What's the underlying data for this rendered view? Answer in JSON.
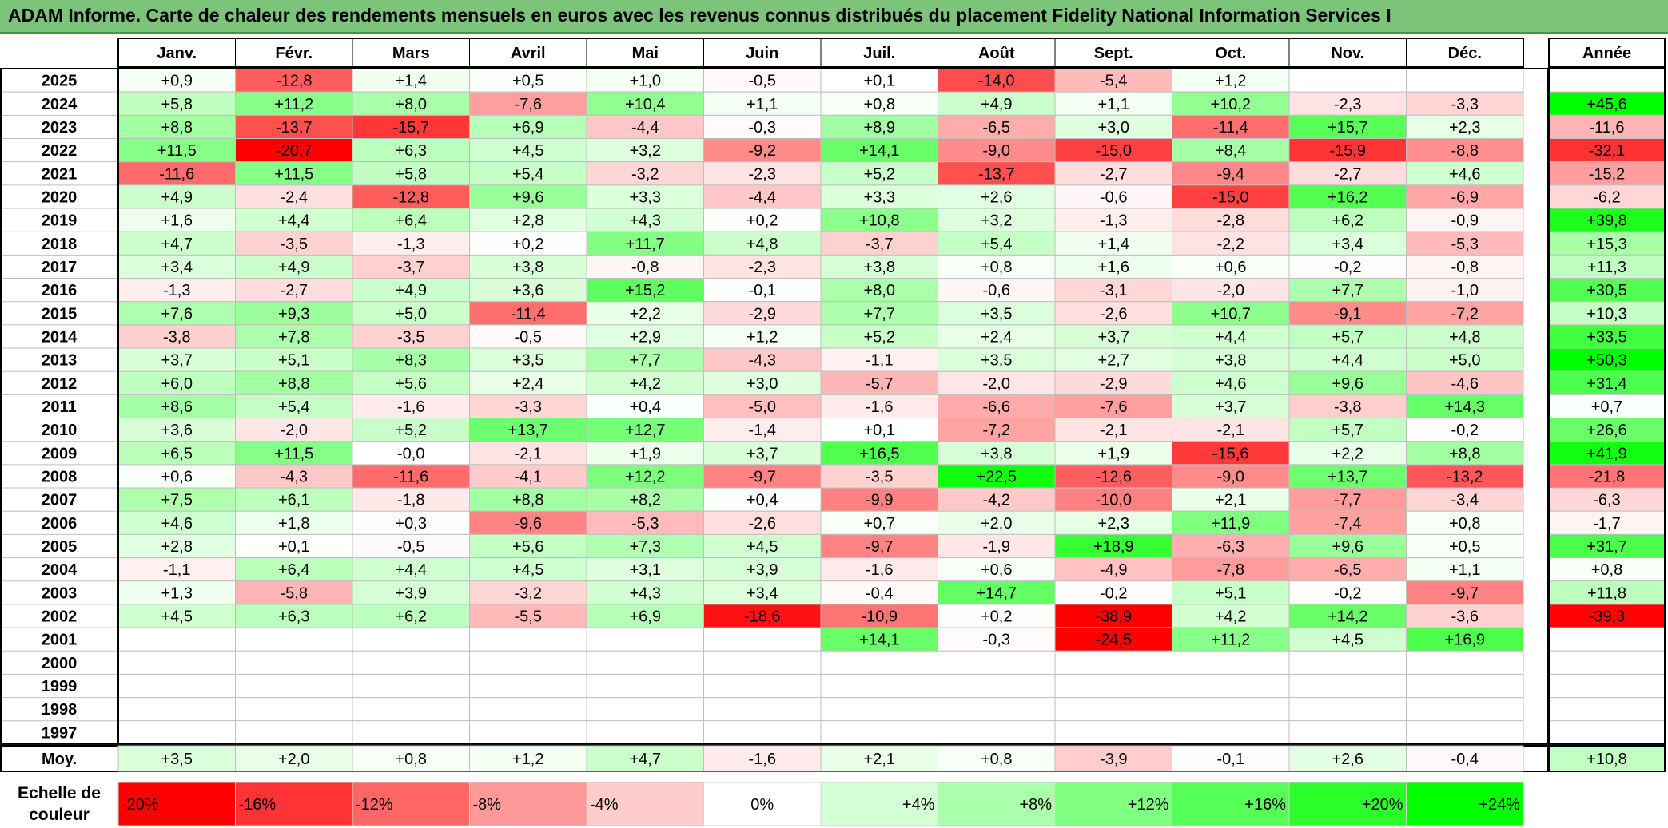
{
  "title": "ADAM Informe. Carte de chaleur des rendements mensuels en euros avec les revenus connus distribués du placement Fidelity National Information Services I",
  "chart_data": {
    "type": "heatmap",
    "months": [
      "Janv.",
      "Févr.",
      "Mars",
      "Avril",
      "Mai",
      "Juin",
      "Juil.",
      "Août",
      "Sept.",
      "Oct.",
      "Nov.",
      "Déc."
    ],
    "year_header": "Année",
    "rows": [
      {
        "year": "2025",
        "values": [
          "+0,9",
          "-12,8",
          "+1,4",
          "+0,5",
          "+1,0",
          "-0,5",
          "+0,1",
          "-14,0",
          "-5,4",
          "+1,2",
          "",
          ""
        ],
        "annual": ""
      },
      {
        "year": "2024",
        "values": [
          "+5,8",
          "+11,2",
          "+8,0",
          "-7,6",
          "+10,4",
          "+1,1",
          "+0,8",
          "+4,9",
          "+1,1",
          "+10,2",
          "-2,3",
          "-3,3"
        ],
        "annual": "+45,6"
      },
      {
        "year": "2023",
        "values": [
          "+8,8",
          "-13,7",
          "-15,7",
          "+6,9",
          "-4,4",
          "-0,3",
          "+8,9",
          "-6,5",
          "+3,0",
          "-11,4",
          "+15,7",
          "+2,3"
        ],
        "annual": "-11,6"
      },
      {
        "year": "2022",
        "values": [
          "+11,5",
          "-20,7",
          "+6,3",
          "+4,5",
          "+3,2",
          "-9,2",
          "+14,1",
          "-9,0",
          "-15,0",
          "+8,4",
          "-15,9",
          "-8,8"
        ],
        "annual": "-32,1"
      },
      {
        "year": "2021",
        "values": [
          "-11,6",
          "+11,5",
          "+5,8",
          "+5,4",
          "-3,2",
          "-2,3",
          "+5,2",
          "-13,7",
          "-2,7",
          "-9,4",
          "-2,7",
          "+4,6"
        ],
        "annual": "-15,2"
      },
      {
        "year": "2020",
        "values": [
          "+4,9",
          "-2,4",
          "-12,8",
          "+9,6",
          "+3,3",
          "-4,4",
          "+3,3",
          "+2,6",
          "-0,6",
          "-15,0",
          "+16,2",
          "-6,9"
        ],
        "annual": "-6,2"
      },
      {
        "year": "2019",
        "values": [
          "+1,6",
          "+4,4",
          "+6,4",
          "+2,8",
          "+4,3",
          "+0,2",
          "+10,8",
          "+3,2",
          "-1,3",
          "-2,8",
          "+6,2",
          "-0,9"
        ],
        "annual": "+39,8"
      },
      {
        "year": "2018",
        "values": [
          "+4,7",
          "-3,5",
          "-1,3",
          "+0,2",
          "+11,7",
          "+4,8",
          "-3,7",
          "+5,4",
          "+1,4",
          "-2,2",
          "+3,4",
          "-5,3"
        ],
        "annual": "+15,3"
      },
      {
        "year": "2017",
        "values": [
          "+3,4",
          "+4,9",
          "-3,7",
          "+3,8",
          "-0,8",
          "-2,3",
          "+3,8",
          "+0,8",
          "+1,6",
          "+0,6",
          "-0,2",
          "-0,8"
        ],
        "annual": "+11,3"
      },
      {
        "year": "2016",
        "values": [
          "-1,3",
          "-2,7",
          "+4,9",
          "+3,6",
          "+15,2",
          "-0,1",
          "+8,0",
          "-0,6",
          "-3,1",
          "-2,0",
          "+7,7",
          "-1,0"
        ],
        "annual": "+30,5"
      },
      {
        "year": "2015",
        "values": [
          "+7,6",
          "+9,3",
          "+5,0",
          "-11,4",
          "+2,2",
          "-2,9",
          "+7,7",
          "+3,5",
          "-2,6",
          "+10,7",
          "-9,1",
          "-7,2"
        ],
        "annual": "+10,3"
      },
      {
        "year": "2014",
        "values": [
          "-3,8",
          "+7,8",
          "-3,5",
          "-0,5",
          "+2,9",
          "+1,2",
          "+5,2",
          "+2,4",
          "+3,7",
          "+4,4",
          "+5,7",
          "+4,8"
        ],
        "annual": "+33,5"
      },
      {
        "year": "2013",
        "values": [
          "+3,7",
          "+5,1",
          "+8,3",
          "+3,5",
          "+7,7",
          "-4,3",
          "-1,1",
          "+3,5",
          "+2,7",
          "+3,8",
          "+4,4",
          "+5,0"
        ],
        "annual": "+50,3"
      },
      {
        "year": "2012",
        "values": [
          "+6,0",
          "+8,8",
          "+5,6",
          "+2,4",
          "+4,2",
          "+3,0",
          "-5,7",
          "-2,0",
          "-2,9",
          "+4,6",
          "+9,6",
          "-4,6"
        ],
        "annual": "+31,4"
      },
      {
        "year": "2011",
        "values": [
          "+8,6",
          "+5,4",
          "-1,6",
          "-3,3",
          "+0,4",
          "-5,0",
          "-1,6",
          "-6,6",
          "-7,6",
          "+3,7",
          "-3,8",
          "+14,3"
        ],
        "annual": "+0,7"
      },
      {
        "year": "2010",
        "values": [
          "+3,6",
          "-2,0",
          "+5,2",
          "+13,7",
          "+12,7",
          "-1,4",
          "+0,1",
          "-7,2",
          "-2,1",
          "-2,1",
          "+5,7",
          "-0,2"
        ],
        "annual": "+26,6"
      },
      {
        "year": "2009",
        "values": [
          "+6,5",
          "+11,5",
          "-0,0",
          "-2,1",
          "+1,9",
          "+3,7",
          "+16,5",
          "+3,8",
          "+1,9",
          "-15,6",
          "+2,2",
          "+8,8"
        ],
        "annual": "+41,9"
      },
      {
        "year": "2008",
        "values": [
          "+0,6",
          "-4,3",
          "-11,6",
          "-4,1",
          "+12,2",
          "-9,7",
          "-3,5",
          "+22,5",
          "-12,6",
          "-9,0",
          "+13,7",
          "-13,2"
        ],
        "annual": "-21,8"
      },
      {
        "year": "2007",
        "values": [
          "+7,5",
          "+6,1",
          "-1,8",
          "+8,8",
          "+8,2",
          "+0,4",
          "-9,9",
          "-4,2",
          "-10,0",
          "+2,1",
          "-7,7",
          "-3,4"
        ],
        "annual": "-6,3"
      },
      {
        "year": "2006",
        "values": [
          "+4,6",
          "+1,8",
          "+0,3",
          "-9,6",
          "-5,3",
          "-2,6",
          "+0,7",
          "+2,0",
          "+2,3",
          "+11,9",
          "-7,4",
          "+0,8"
        ],
        "annual": "-1,7"
      },
      {
        "year": "2005",
        "values": [
          "+2,8",
          "+0,1",
          "-0,5",
          "+5,6",
          "+7,3",
          "+4,5",
          "-9,7",
          "-1,9",
          "+18,9",
          "-6,3",
          "+9,6",
          "+0,5"
        ],
        "annual": "+31,7"
      },
      {
        "year": "2004",
        "values": [
          "-1,1",
          "+6,4",
          "+4,4",
          "+4,5",
          "+3,1",
          "+3,9",
          "-1,6",
          "+0,6",
          "-4,9",
          "-7,8",
          "-6,5",
          "+1,1"
        ],
        "annual": "+0,8"
      },
      {
        "year": "2003",
        "values": [
          "+1,3",
          "-5,8",
          "+3,9",
          "-3,2",
          "+4,3",
          "+3,4",
          "-0,4",
          "+14,7",
          "-0,2",
          "+5,1",
          "-0,2",
          "-9,7"
        ],
        "annual": "+11,8"
      },
      {
        "year": "2002",
        "values": [
          "+4,5",
          "+6,3",
          "+6,2",
          "-5,5",
          "+6,9",
          "-18,6",
          "-10,9",
          "+0,2",
          "-38,9",
          "+4,2",
          "+14,2",
          "-3,6"
        ],
        "annual": "-39,3"
      },
      {
        "year": "2001",
        "values": [
          "",
          "",
          "",
          "",
          "",
          "",
          "+14,1",
          "-0,3",
          "-24,5",
          "+11,2",
          "+4,5",
          "+16,9"
        ],
        "annual": ""
      },
      {
        "year": "2000",
        "values": [
          "",
          "",
          "",
          "",
          "",
          "",
          "",
          "",
          "",
          "",
          "",
          ""
        ],
        "annual": ""
      },
      {
        "year": "1999",
        "values": [
          "",
          "",
          "",
          "",
          "",
          "",
          "",
          "",
          "",
          "",
          "",
          ""
        ],
        "annual": ""
      },
      {
        "year": "1998",
        "values": [
          "",
          "",
          "",
          "",
          "",
          "",
          "",
          "",
          "",
          "",
          "",
          ""
        ],
        "annual": ""
      },
      {
        "year": "1997",
        "values": [
          "",
          "",
          "",
          "",
          "",
          "",
          "",
          "",
          "",
          "",
          "",
          ""
        ],
        "annual": ""
      }
    ],
    "average": {
      "label": "Moy.",
      "values": [
        "+3,5",
        "+2,0",
        "+0,8",
        "+1,2",
        "+4,7",
        "-1,6",
        "+2,1",
        "+0,8",
        "-3,9",
        "-0,1",
        "+2,6",
        "-0,4"
      ],
      "annual": "+10,8"
    },
    "color_scale": {
      "label_line1": "Echelle de",
      "label_line2": "couleur",
      "steps": [
        "-20%",
        "-16%",
        "-12%",
        "-8%",
        "-4%",
        "0%",
        "+4%",
        "+8%",
        "+12%",
        "+16%",
        "+20%",
        "+24%"
      ],
      "step_values": [
        -20,
        -16,
        -12,
        -8,
        -4,
        0,
        4,
        8,
        12,
        16,
        20,
        24
      ]
    },
    "colors": {
      "negative_max": "#ff0000",
      "positive_max": "#00ff00",
      "neutral": "#ffffff",
      "title_bg": "#7cc47a"
    }
  }
}
